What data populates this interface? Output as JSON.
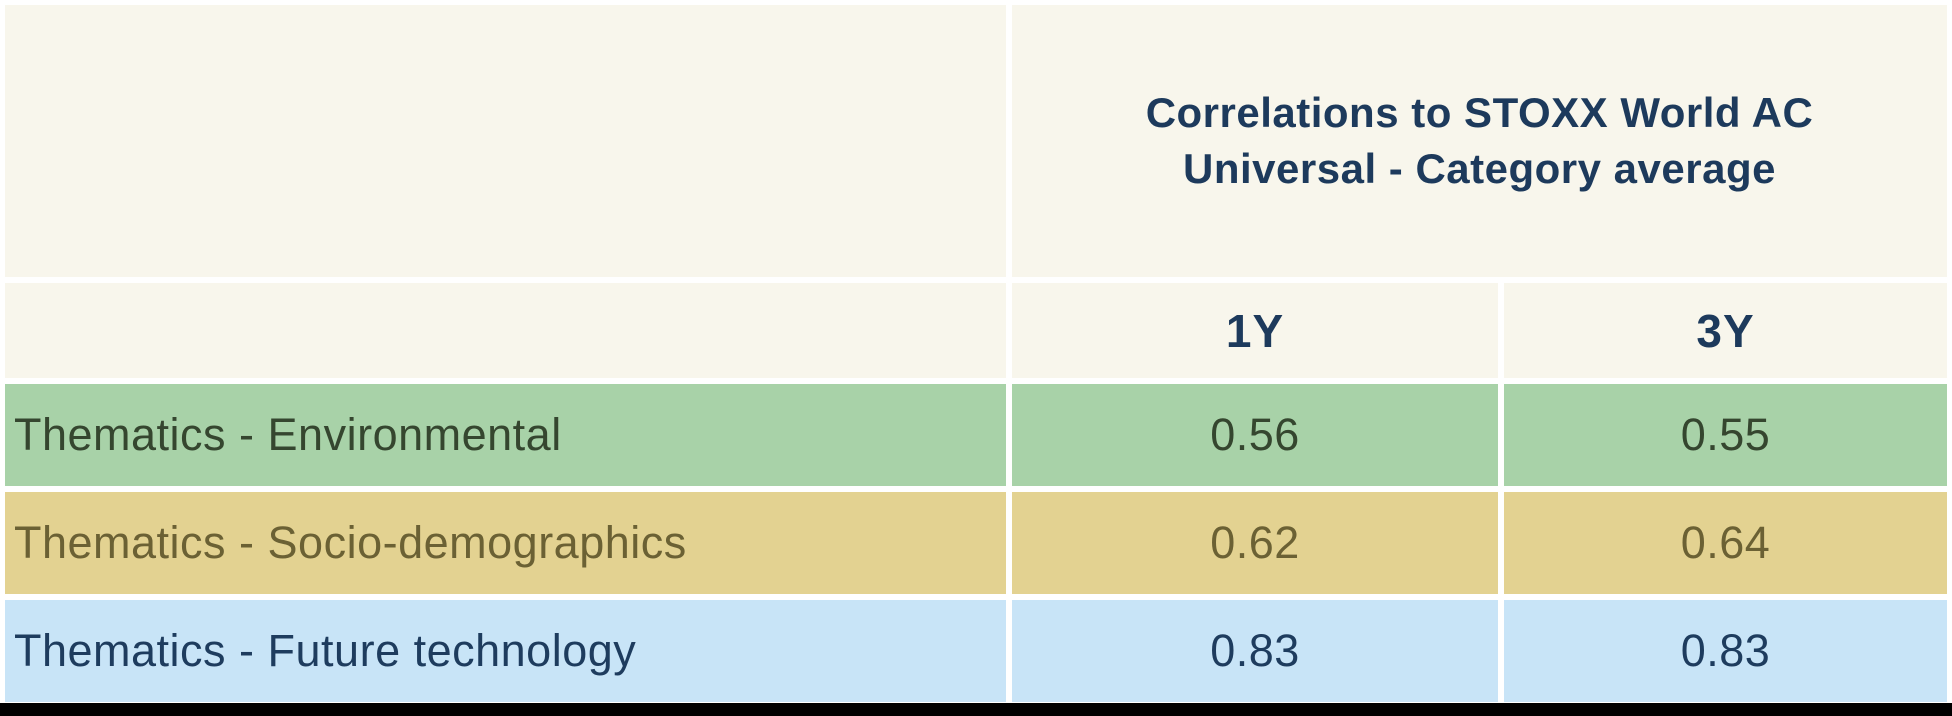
{
  "table": {
    "header": {
      "title_line1": "Correlations to STOXX World AC",
      "title_line2": "Universal - Category average"
    },
    "columns": [
      "1Y",
      "3Y"
    ],
    "rows": [
      {
        "label": "Thematics - Environmental",
        "values": [
          "0.56",
          "0.55"
        ],
        "bg": "#a8d2a8",
        "fg": "#35462f"
      },
      {
        "label": "Thematics - Socio-demographics",
        "values": [
          "0.62",
          "0.64"
        ],
        "bg": "#e3d291",
        "fg": "#6b6134"
      },
      {
        "label": "Thematics - Future technology",
        "values": [
          "0.83",
          "0.83"
        ],
        "bg": "#c8e4f7",
        "fg": "#1e3c5e"
      }
    ],
    "colors": {
      "cream": "#f8f6ec",
      "navy": "#1d3a5c",
      "page_bg": "#ffffff",
      "bottom_bar": "#000000"
    }
  },
  "chart_data": {
    "type": "table",
    "title": "Correlations to STOXX World AC Universal - Category average",
    "columns": [
      "",
      "1Y",
      "3Y"
    ],
    "rows": [
      [
        "Thematics - Environmental",
        0.56,
        0.55
      ],
      [
        "Thematics - Socio-demographics",
        0.62,
        0.64
      ],
      [
        "Thematics - Future technology",
        0.83,
        0.83
      ]
    ],
    "layout": {
      "grid": false,
      "legend": false,
      "row_colors": [
        "#a8d2a8",
        "#e3d291",
        "#c8e4f7"
      ]
    }
  }
}
